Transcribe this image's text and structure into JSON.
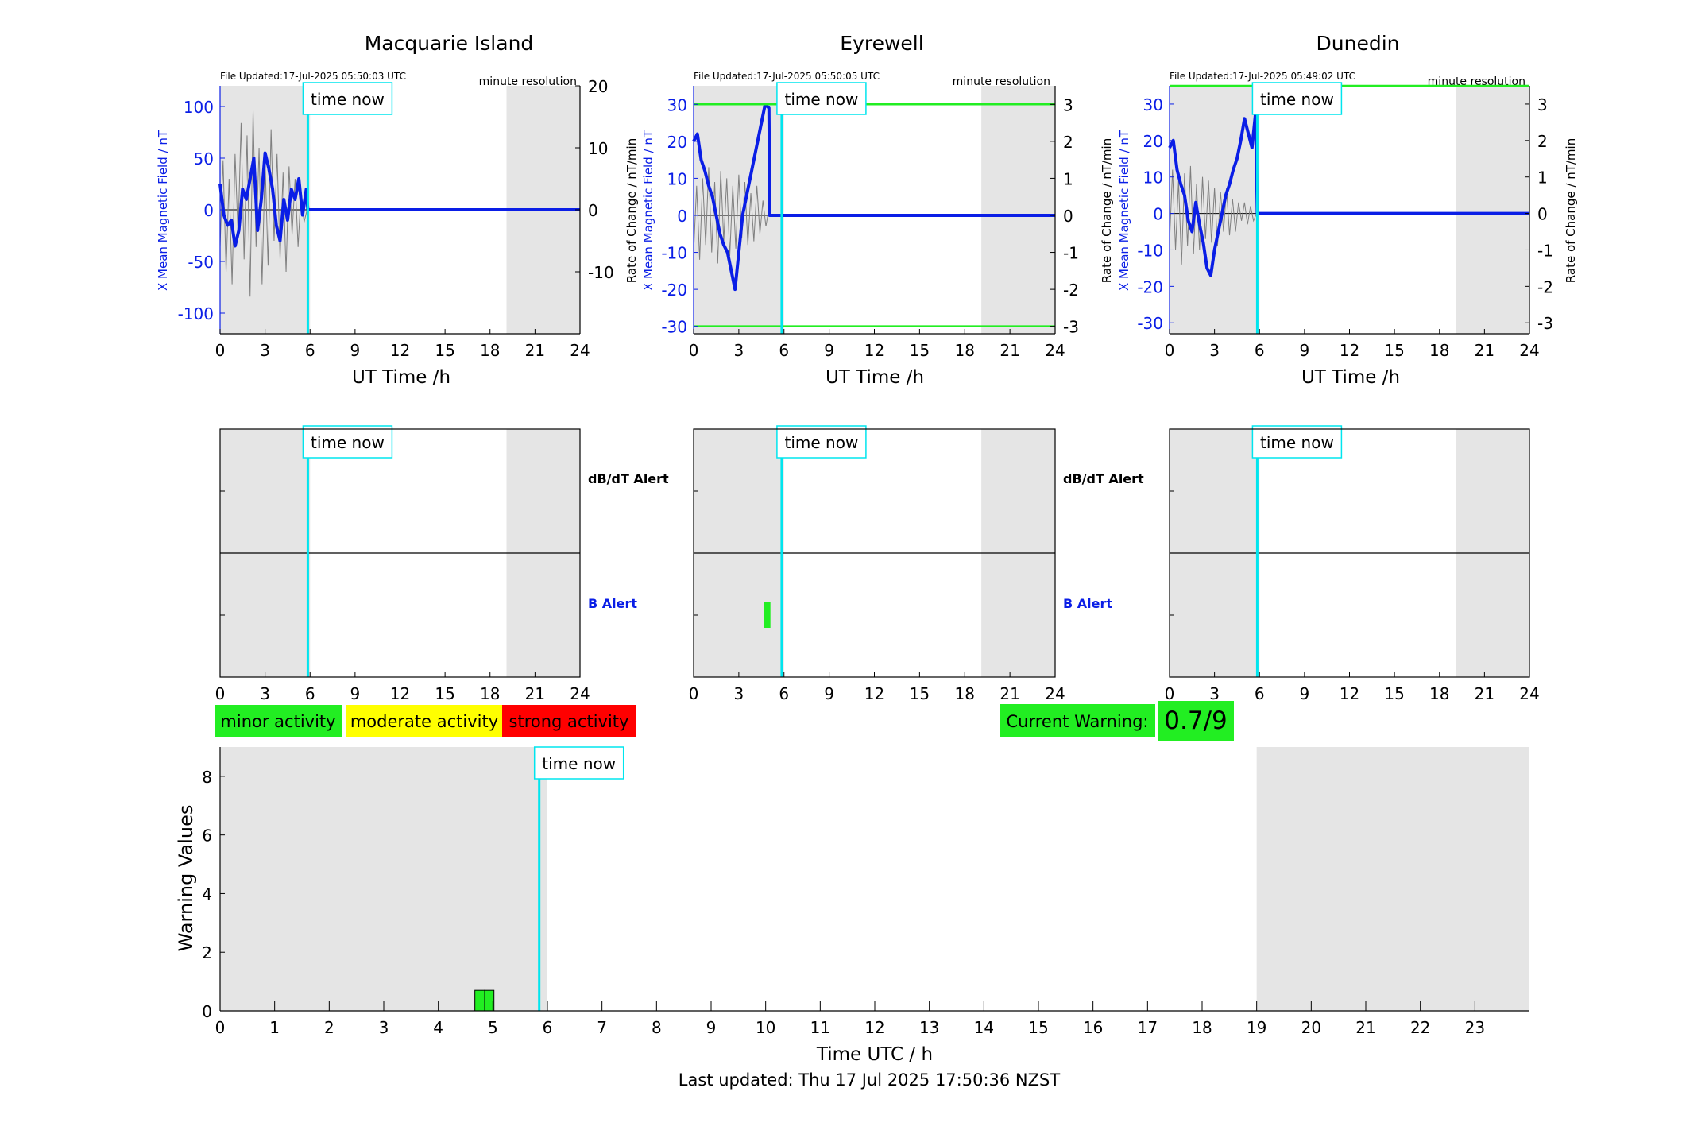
{
  "colors": {
    "shade": "#e5e5e5",
    "x_field": "#0a1ee6",
    "rate": "#7f7f7f",
    "time_now": "#00e5ee",
    "threshold": "#22ee22",
    "minor": "#22ee22",
    "moderate": "#ffff00",
    "strong": "#ff0000",
    "b_alert_label": "#0a1ee6"
  },
  "labels": {
    "ut_xlabel": "UT Time /h",
    "x_field_ylabel": "X Mean Magnetic Field / nT",
    "rate_ylabel": "Rate of Change / nT/min",
    "resolution": "minute resolution",
    "time_now": "time now",
    "dbdt_alert": "dB/dT Alert",
    "b_alert": "B Alert"
  },
  "legend": {
    "minor": "minor activity",
    "moderate": "moderate activity",
    "strong": "strong activity"
  },
  "current_warning": {
    "label": "Current Warning:",
    "value": "0.7/9"
  },
  "last_updated": "Last updated: Thu 17 Jul 2025 17:50:36 NZST",
  "chart_data": [
    {
      "type": "line",
      "title": "Macquarie Island",
      "file_updated": "File Updated:17-Jul-2025 05:50:03 UTC",
      "xlabel": "UT Time /h",
      "ylabel": "X Mean Magnetic Field / nT",
      "ylabel_right": "",
      "xlim": [
        0,
        24
      ],
      "ylim": [
        -120,
        120
      ],
      "yticks": [
        -100,
        -50,
        0,
        50,
        100
      ],
      "ylim_right": [
        -20,
        20
      ],
      "yticks_right": [
        -10,
        0,
        10,
        20
      ],
      "xticks": [
        0,
        3,
        6,
        9,
        12,
        15,
        18,
        21,
        24
      ],
      "shaded_hours": [
        [
          0,
          6
        ],
        [
          19.1,
          24
        ]
      ],
      "time_now": 5.85,
      "thresholds": [],
      "series": [
        {
          "x": [
            0,
            0.25,
            0.5,
            0.75,
            1,
            1.25,
            1.5,
            1.75,
            2,
            2.25,
            2.5,
            2.75,
            3,
            3.25,
            3.5,
            3.75,
            4,
            4.25,
            4.5,
            4.75,
            5,
            5.25,
            5.5,
            5.75,
            5.85,
            7,
            12,
            18,
            24
          ],
          "y": [
            25,
            -5,
            -15,
            -10,
            -35,
            -20,
            20,
            10,
            30,
            50,
            -20,
            10,
            55,
            40,
            20,
            -15,
            -30,
            10,
            -10,
            20,
            10,
            30,
            -5,
            20,
            0,
            0,
            0,
            0,
            0
          ]
        },
        {
          "x": [
            0,
            0.2,
            0.4,
            0.6,
            0.8,
            1,
            1.2,
            1.4,
            1.6,
            1.8,
            2,
            2.2,
            2.4,
            2.6,
            2.8,
            3,
            3.2,
            3.4,
            3.6,
            3.8,
            4,
            4.2,
            4.4,
            4.6,
            4.8,
            5,
            5.2,
            5.4,
            5.6,
            5.8
          ],
          "y": [
            -6,
            8,
            -10,
            5,
            -12,
            9,
            -4,
            14,
            -8,
            12,
            -14,
            16,
            -6,
            10,
            -12,
            8,
            -9,
            13,
            -5,
            9,
            -8,
            6,
            -10,
            7,
            -4,
            5,
            -6,
            3,
            -2,
            0
          ]
        }
      ]
    },
    {
      "type": "line",
      "title": "Eyrewell",
      "file_updated": "File Updated:17-Jul-2025 05:50:05 UTC",
      "xlabel": "UT Time /h",
      "ylabel": "X Mean Magnetic Field / nT",
      "ylabel_right": "Rate of Change / nT/min",
      "xlim": [
        0,
        24
      ],
      "ylim": [
        -32,
        35
      ],
      "yticks": [
        -30,
        -20,
        -10,
        0,
        10,
        20,
        30
      ],
      "ylim_right": [
        -3.2,
        3.5
      ],
      "yticks_right": [
        -3,
        -2,
        -1,
        0,
        1,
        2,
        3
      ],
      "xticks": [
        0,
        3,
        6,
        9,
        12,
        15,
        18,
        21,
        24
      ],
      "shaded_hours": [
        [
          0,
          6
        ],
        [
          19.1,
          24
        ]
      ],
      "time_now": 5.85,
      "thresholds": [
        30,
        -30
      ],
      "series": [
        {
          "x": [
            0,
            0.25,
            0.5,
            0.75,
            1,
            1.25,
            1.5,
            1.75,
            2,
            2.25,
            2.5,
            2.75,
            3,
            3.25,
            3.5,
            3.75,
            4,
            4.25,
            4.5,
            4.75,
            5,
            5.05,
            7,
            12,
            18,
            24
          ],
          "y": [
            20,
            22,
            15,
            12,
            8,
            5,
            0,
            -5,
            -8,
            -10,
            -15,
            -20,
            -10,
            0,
            5,
            10,
            15,
            20,
            25,
            30,
            29,
            0,
            0,
            0,
            0,
            0
          ]
        },
        {
          "x": [
            0,
            0.2,
            0.4,
            0.6,
            0.8,
            1,
            1.2,
            1.4,
            1.6,
            1.8,
            2,
            2.2,
            2.4,
            2.6,
            2.8,
            3,
            3.2,
            3.4,
            3.6,
            3.8,
            4,
            4.2,
            4.4,
            4.6,
            4.8,
            5
          ],
          "y": [
            -1,
            0.8,
            -1.2,
            1.0,
            -0.8,
            1.3,
            -1.0,
            0.9,
            -1.3,
            1.2,
            -0.7,
            1.0,
            -1.1,
            0.8,
            -0.9,
            1.1,
            -0.6,
            0.9,
            -0.8,
            0.6,
            -0.7,
            0.8,
            -0.5,
            0.4,
            -0.3,
            0.2
          ]
        }
      ]
    },
    {
      "type": "line",
      "title": "Dunedin",
      "file_updated": "File Updated:17-Jul-2025 05:49:02 UTC",
      "xlabel": "UT Time /h",
      "ylabel": "X Mean Magnetic Field / nT",
      "ylabel_right": "Rate of Change / nT/min",
      "xlim": [
        0,
        24
      ],
      "ylim": [
        -33,
        35
      ],
      "yticks": [
        -30,
        -20,
        -10,
        0,
        10,
        20,
        30
      ],
      "ylim_right": [
        -3.3,
        3.5
      ],
      "yticks_right": [
        -3,
        -2,
        -1,
        0,
        1,
        2,
        3
      ],
      "xticks": [
        0,
        3,
        6,
        9,
        12,
        15,
        18,
        21,
        24
      ],
      "shaded_hours": [
        [
          0,
          6
        ],
        [
          19.1,
          24
        ]
      ],
      "time_now": 5.85,
      "thresholds": [
        35
      ],
      "series": [
        {
          "x": [
            0,
            0.25,
            0.5,
            0.75,
            1,
            1.25,
            1.5,
            1.75,
            2,
            2.25,
            2.5,
            2.75,
            3,
            3.25,
            3.5,
            3.75,
            4,
            4.25,
            4.5,
            4.75,
            5,
            5.25,
            5.5,
            5.75,
            5.85,
            7,
            12,
            18,
            24
          ],
          "y": [
            18,
            20,
            12,
            8,
            5,
            -2,
            -5,
            3,
            -3,
            -8,
            -15,
            -17,
            -10,
            -5,
            0,
            5,
            8,
            12,
            15,
            20,
            26,
            22,
            18,
            28,
            0,
            0,
            0,
            0,
            0
          ]
        },
        {
          "x": [
            0,
            0.2,
            0.4,
            0.6,
            0.8,
            1,
            1.2,
            1.4,
            1.6,
            1.8,
            2,
            2.2,
            2.4,
            2.6,
            2.8,
            3,
            3.2,
            3.4,
            3.6,
            3.8,
            4,
            4.2,
            4.4,
            4.6,
            4.8,
            5,
            5.2,
            5.4,
            5.6,
            5.8
          ],
          "y": [
            -0.8,
            1.2,
            -1.0,
            0.9,
            -1.4,
            1.1,
            -0.9,
            1.3,
            -1.1,
            0.8,
            -1.0,
            1.0,
            -0.7,
            0.9,
            -0.8,
            0.7,
            -0.9,
            0.6,
            -0.5,
            0.7,
            -0.6,
            0.4,
            -0.5,
            0.3,
            -0.2,
            0.3,
            -0.3,
            0.2,
            -0.2,
            0
          ]
        }
      ]
    },
    {
      "type": "bar",
      "title": "",
      "panel": "alerts",
      "station": "Macquarie Island",
      "xlim": [
        0,
        24
      ],
      "xticks": [
        0,
        3,
        6,
        9,
        12,
        15,
        18,
        21,
        24
      ],
      "shaded_hours": [
        [
          0,
          6
        ],
        [
          19.1,
          24
        ]
      ],
      "time_now": 5.85,
      "rows": [
        "dB/dT Alert",
        "B Alert"
      ],
      "alerts": []
    },
    {
      "type": "bar",
      "title": "",
      "panel": "alerts",
      "station": "Eyrewell",
      "xlim": [
        0,
        24
      ],
      "xticks": [
        0,
        3,
        6,
        9,
        12,
        15,
        18,
        21,
        24
      ],
      "shaded_hours": [
        [
          0,
          6
        ],
        [
          19.1,
          24
        ]
      ],
      "time_now": 5.85,
      "rows": [
        "dB/dT Alert",
        "B Alert"
      ],
      "alerts": [
        {
          "row": "B Alert",
          "start": 4.68,
          "end": 5.1,
          "level": "minor"
        }
      ]
    },
    {
      "type": "bar",
      "title": "",
      "panel": "alerts",
      "station": "Dunedin",
      "xlim": [
        0,
        24
      ],
      "xticks": [
        0,
        3,
        6,
        9,
        12,
        15,
        18,
        21,
        24
      ],
      "shaded_hours": [
        [
          0,
          6
        ],
        [
          19.1,
          24
        ]
      ],
      "time_now": 5.85,
      "rows": [
        "dB/dT Alert",
        "B Alert"
      ],
      "alerts": []
    },
    {
      "type": "bar",
      "title": "",
      "xlabel": "Time UTC / h",
      "ylabel": "Warning Values",
      "xlim": [
        0,
        24
      ],
      "ylim": [
        0,
        9
      ],
      "yticks": [
        0,
        2,
        4,
        6,
        8
      ],
      "xticks": [
        0,
        1,
        2,
        3,
        4,
        5,
        6,
        7,
        8,
        9,
        10,
        11,
        12,
        13,
        14,
        15,
        16,
        17,
        18,
        19,
        20,
        21,
        22,
        23
      ],
      "shaded_hours": [
        [
          0,
          6
        ],
        [
          19,
          24
        ]
      ],
      "time_now": 5.85,
      "bars": [
        {
          "start": 4.67,
          "end": 4.85,
          "value": 0.7,
          "level": "minor"
        },
        {
          "start": 4.85,
          "end": 5.02,
          "value": 0.7,
          "level": "minor"
        }
      ]
    }
  ]
}
